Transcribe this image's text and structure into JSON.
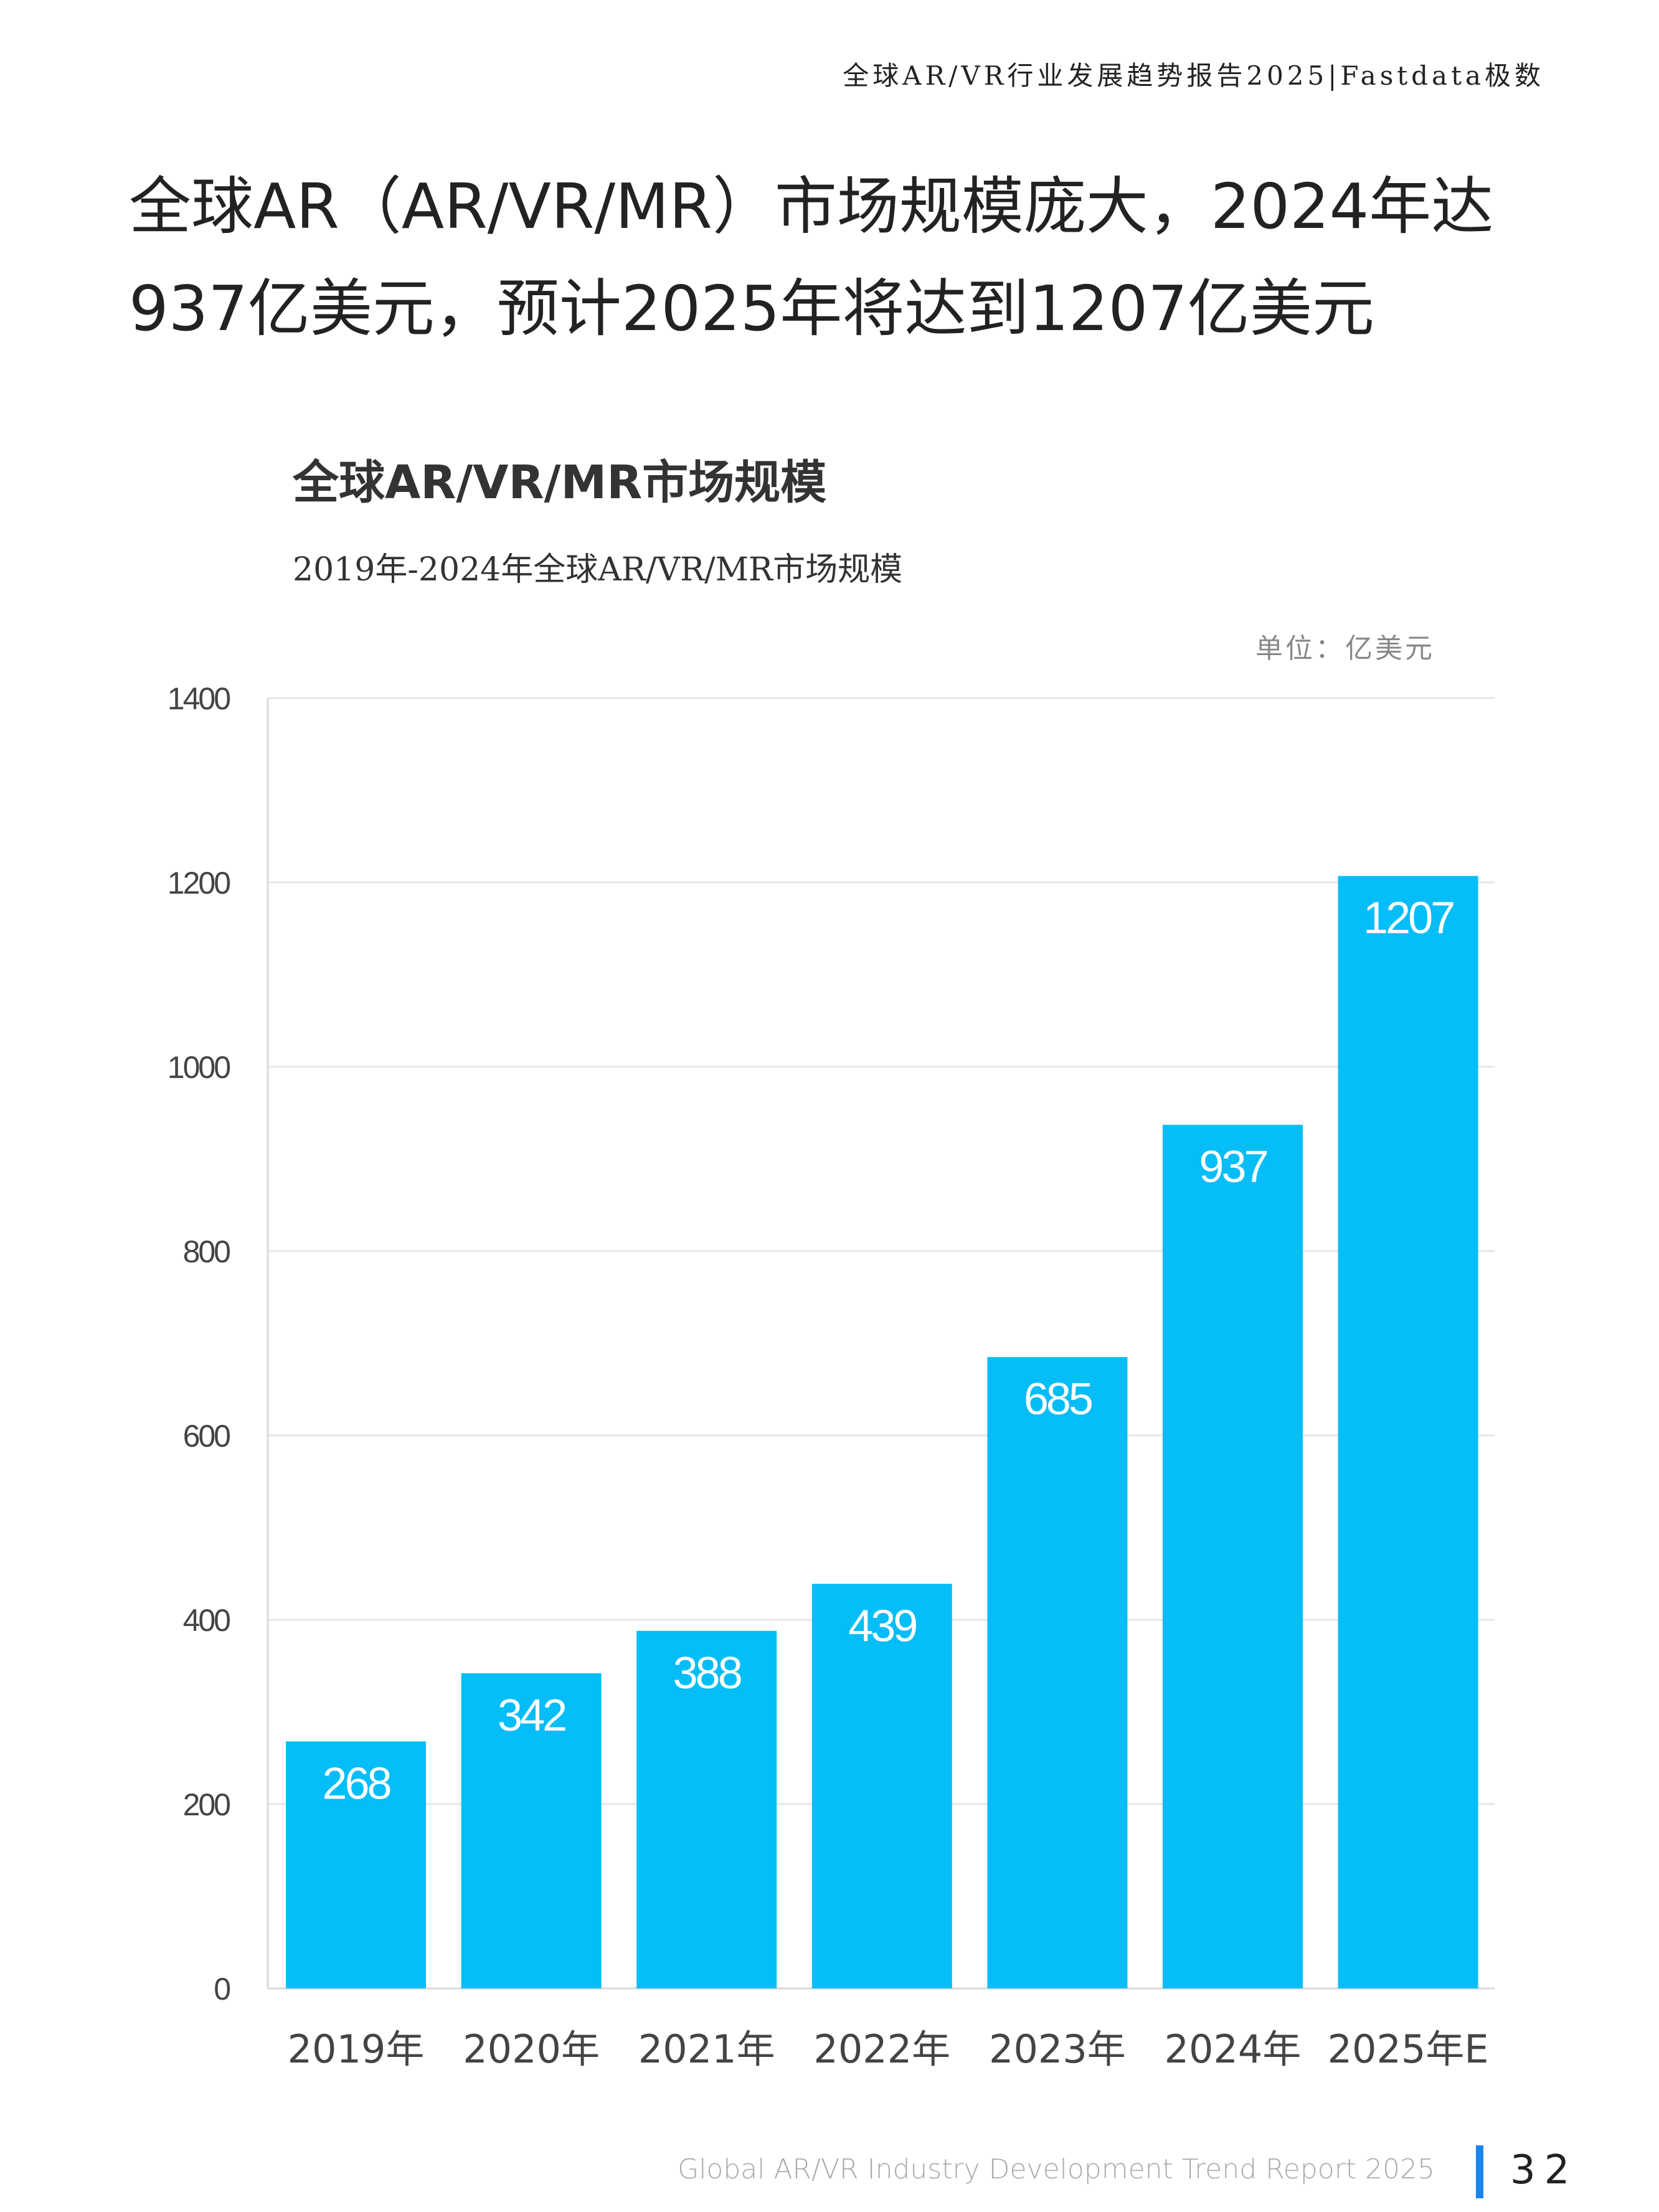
{
  "header": {
    "running_title": "全球AR/VR行业发展趋势报告2025|Fastdata极数"
  },
  "page_title": {
    "line1": "全球AR（AR/VR/MR）市场规模庞大，2024年达",
    "line2": "937亿美元，预计2025年将达到1207亿美元"
  },
  "chart_data": {
    "type": "bar",
    "title": "全球AR/VR/MR市场规模",
    "subtitle": "2019年-2024年全球AR/VR/MR市场规模",
    "unit": "单位：亿美元",
    "categories": [
      "2019年",
      "2020年",
      "2021年",
      "2022年",
      "2023年",
      "2024年",
      "2025年E"
    ],
    "values": [
      268,
      342,
      388,
      439,
      685,
      937,
      1207
    ],
    "ylim": [
      0,
      1400
    ],
    "yticks": [
      0,
      200,
      400,
      600,
      800,
      1000,
      1200,
      1400
    ],
    "grid": true,
    "data_labels": true,
    "bar_color": "#05BDF7"
  },
  "footer": {
    "report_name": "Global AR/VR Industry Development Trend Report 2025",
    "page_number": "32",
    "accent_color": "#1A84EA"
  }
}
